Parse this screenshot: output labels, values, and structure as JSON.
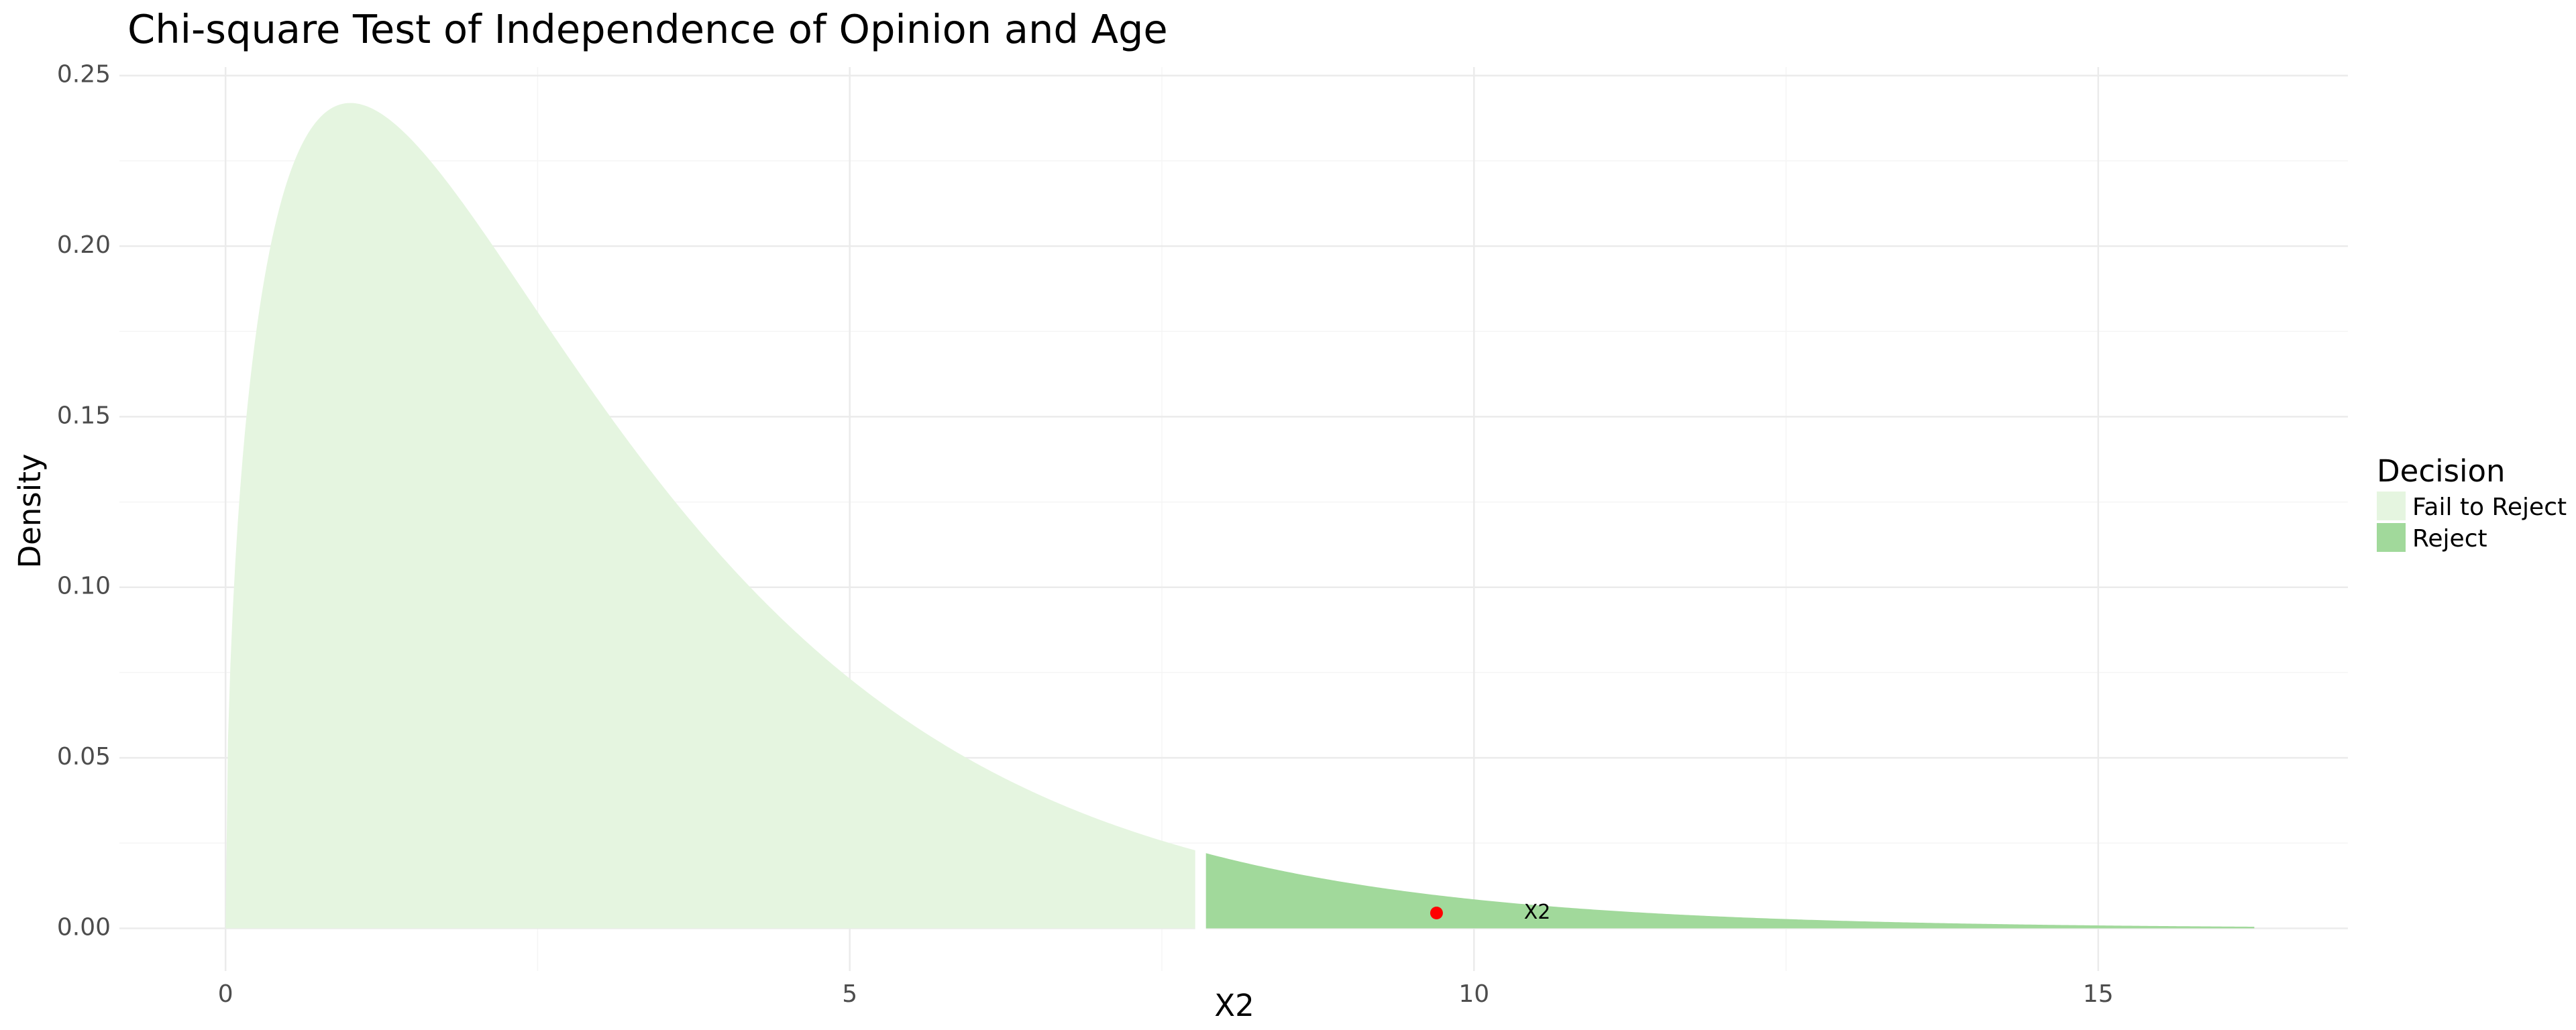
{
  "chart_data": {
    "type": "area",
    "title": "Chi-square Test of Independence of Opinion and Age",
    "xlabel": "X2",
    "ylabel": "Density",
    "df": 3,
    "critical_value": 7.81,
    "xlim": [
      -0.85,
      17.0
    ],
    "ylim": [
      -0.0125,
      0.2525
    ],
    "x_ticks": [
      0,
      5,
      10,
      15
    ],
    "x_tick_labels": [
      "0",
      "5",
      "10",
      "15"
    ],
    "y_ticks": [
      0,
      0.05,
      0.1,
      0.15,
      0.2,
      0.25
    ],
    "y_tick_labels": [
      "0.00",
      "0.05",
      "0.10",
      "0.15",
      "0.20",
      "0.25"
    ],
    "grid": true,
    "legend": {
      "title": "Decision",
      "position": "right",
      "entries": [
        {
          "label": "Fail to Reject",
          "color": "#e5f5e0"
        },
        {
          "label": "Reject",
          "color": "#a1d99b"
        }
      ]
    },
    "series": [
      {
        "name": "Fail to Reject",
        "color": "#e5f5e0",
        "x_range": [
          0,
          7.81
        ],
        "density_points": [
          {
            "x": 0.1,
            "y": 0.12
          },
          {
            "x": 0.5,
            "y": 0.219
          },
          {
            "x": 1.0,
            "y": 0.242
          },
          {
            "x": 2.0,
            "y": 0.208
          },
          {
            "x": 3.0,
            "y": 0.154
          },
          {
            "x": 4.0,
            "y": 0.108
          },
          {
            "x": 5.0,
            "y": 0.073
          },
          {
            "x": 6.0,
            "y": 0.049
          },
          {
            "x": 7.0,
            "y": 0.032
          },
          {
            "x": 7.81,
            "y": 0.023
          }
        ]
      },
      {
        "name": "Reject",
        "color": "#a1d99b",
        "x_range": [
          7.81,
          16.25
        ],
        "density_points": [
          {
            "x": 7.81,
            "y": 0.023
          },
          {
            "x": 9.0,
            "y": 0.013
          },
          {
            "x": 10.0,
            "y": 0.008
          },
          {
            "x": 12.0,
            "y": 0.003
          },
          {
            "x": 14.0,
            "y": 0.001
          },
          {
            "x": 16.25,
            "y": 0.0004
          }
        ]
      }
    ],
    "annotations": [
      {
        "label": "X2",
        "x": 10.4,
        "y": 0.0045
      },
      {
        "point": true,
        "x": 9.7,
        "y": 0.0045,
        "color": "#ff0000"
      }
    ]
  }
}
